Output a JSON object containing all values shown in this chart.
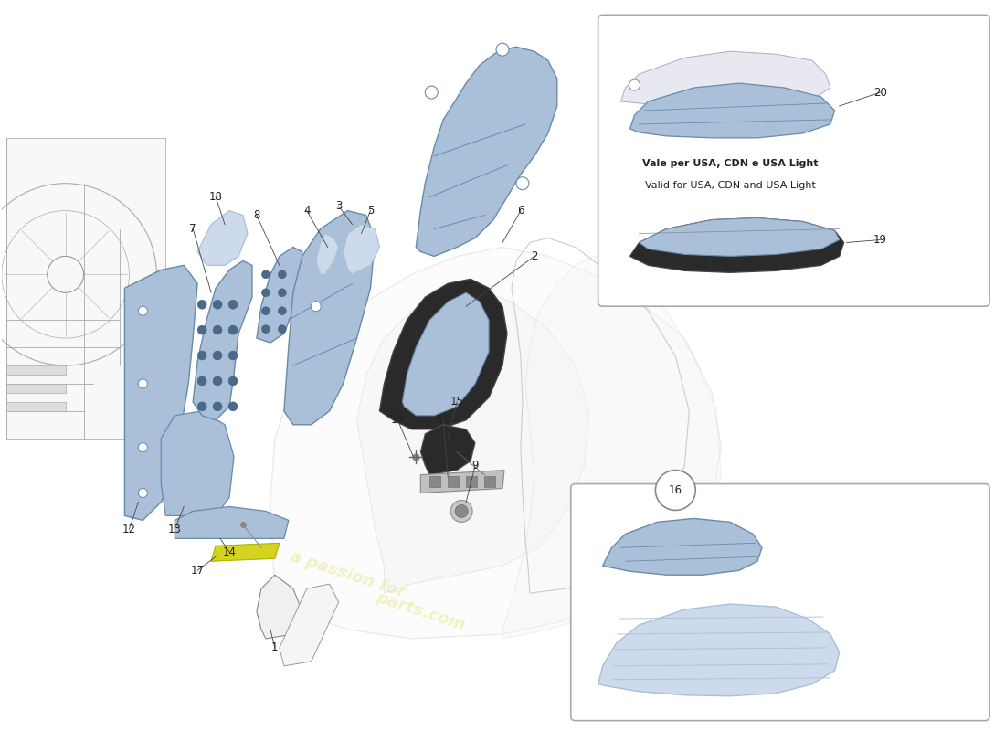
{
  "background_color": "#ffffff",
  "light_blue": "#aabfd8",
  "dark_blue": "#6a8aaa",
  "very_light_blue": "#ccdaeb",
  "line_color": "#555555",
  "dark_line": "#333333",
  "ferrari_yellow": "#e8e870",
  "carbon_dark": "#2a2a2a",
  "carbon_mid": "#1e1e1e",
  "figsize": [
    11.0,
    8.0
  ],
  "dpi": 100,
  "usa_note_line1": "Vale per USA, CDN e USA Light",
  "usa_note_line2": "Valid for USA, CDN and USA Light",
  "watermark1": "a passion for",
  "watermark2": "parts.com"
}
